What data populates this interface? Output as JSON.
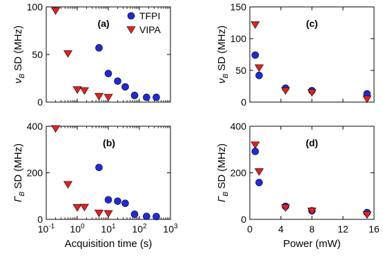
{
  "colors": {
    "tfpi": "#1f2ad9",
    "vipa": "#e81e1e",
    "axis": "#000000"
  },
  "legend": {
    "placement": "top-right of panel (a)",
    "entries": [
      {
        "series": "TFPI",
        "marker": "circle"
      },
      {
        "series": "VIPA",
        "marker": "triangle-down"
      }
    ]
  },
  "chart_data": [
    {
      "id": "a",
      "panel_label": "(a)",
      "type": "scatter",
      "xscale": "log",
      "xlim": [
        0.1,
        1000
      ],
      "ylim": [
        0,
        100
      ],
      "xticks": [
        0.1,
        1,
        10,
        100,
        1000
      ],
      "xtick_labels": [
        "",
        "",
        "",
        "",
        ""
      ],
      "yticks": [
        0,
        50,
        100
      ],
      "ytick_labels": [
        "0",
        "50",
        "100"
      ],
      "xlabel": "",
      "ylabel_main": "ν",
      "ylabel_sub": "B",
      "ylabel_rest": " SD (MHz)",
      "series": [
        {
          "name": "TFPI",
          "marker": "circle",
          "x": [
            5,
            10,
            20,
            35,
            70,
            170,
            350
          ],
          "y": [
            57,
            30,
            22,
            16,
            7,
            5,
            5
          ]
        },
        {
          "name": "VIPA",
          "marker": "triangle-down",
          "x": [
            0.2,
            0.5,
            1,
            1.7,
            5,
            10
          ],
          "y": [
            96,
            51,
            13,
            12,
            6,
            5
          ]
        }
      ]
    },
    {
      "id": "b",
      "panel_label": "(b)",
      "type": "scatter",
      "xscale": "log",
      "xlim": [
        0.1,
        1000
      ],
      "ylim": [
        0,
        400
      ],
      "xticks": [
        0.1,
        1,
        10,
        100,
        1000
      ],
      "xtick_labels": [
        "10^-1",
        "10^0",
        "10^1",
        "10^2",
        "10^3"
      ],
      "yticks": [
        0,
        200,
        400
      ],
      "ytick_labels": [
        "0",
        "200",
        "400"
      ],
      "xlabel": "Acquisition time (s)",
      "ylabel_main": "Γ",
      "ylabel_sub": "B",
      "ylabel_rest": " SD (MHz)",
      "series": [
        {
          "name": "TFPI",
          "marker": "circle",
          "x": [
            5,
            10,
            20,
            35,
            70,
            170,
            350
          ],
          "y": [
            223,
            84,
            78,
            69,
            22,
            13,
            12
          ]
        },
        {
          "name": "VIPA",
          "marker": "triangle-down",
          "x": [
            0.2,
            0.5,
            1,
            1.7,
            5,
            10
          ],
          "y": [
            390,
            150,
            51,
            52,
            27,
            25
          ]
        }
      ]
    },
    {
      "id": "c",
      "panel_label": "(c)",
      "type": "scatter",
      "xscale": "linear",
      "xlim": [
        0,
        16
      ],
      "ylim": [
        0,
        150
      ],
      "xticks": [
        0,
        4,
        8,
        12,
        16
      ],
      "xtick_labels": [
        "",
        "",
        "",
        "",
        ""
      ],
      "yticks": [
        0,
        50,
        100,
        150
      ],
      "ytick_labels": [
        "0",
        "50",
        "100",
        "150"
      ],
      "xlabel": "",
      "ylabel_main": "ν",
      "ylabel_sub": "B",
      "ylabel_rest": " SD (MHz)",
      "series": [
        {
          "name": "TFPI",
          "marker": "circle",
          "x": [
            0.7,
            1.2,
            4.6,
            8,
            15.1
          ],
          "y": [
            74,
            42,
            22,
            18,
            13
          ]
        },
        {
          "name": "VIPA",
          "marker": "triangle-down",
          "x": [
            0.7,
            1.2,
            4.6,
            8,
            15.1
          ],
          "y": [
            122,
            54,
            18,
            15,
            5
          ]
        }
      ]
    },
    {
      "id": "d",
      "panel_label": "(d)",
      "type": "scatter",
      "xscale": "linear",
      "xlim": [
        0,
        16
      ],
      "ylim": [
        0,
        400
      ],
      "xticks": [
        0,
        4,
        8,
        12,
        16
      ],
      "xtick_labels": [
        "0",
        "4",
        "8",
        "12",
        "16"
      ],
      "yticks": [
        0,
        200,
        400
      ],
      "ytick_labels": [
        "0",
        "200",
        "400"
      ],
      "xlabel": "Power (mW)",
      "ylabel_main": "Γ",
      "ylabel_sub": "B",
      "ylabel_rest": " SD (MHz)",
      "series": [
        {
          "name": "TFPI",
          "marker": "circle",
          "x": [
            0.7,
            1.2,
            4.6,
            8,
            15.1
          ],
          "y": [
            292,
            158,
            56,
            37,
            29
          ]
        },
        {
          "name": "VIPA",
          "marker": "triangle-down",
          "x": [
            0.7,
            1.2,
            4.6,
            8,
            15.1
          ],
          "y": [
            320,
            205,
            50,
            36,
            20
          ]
        }
      ]
    }
  ]
}
